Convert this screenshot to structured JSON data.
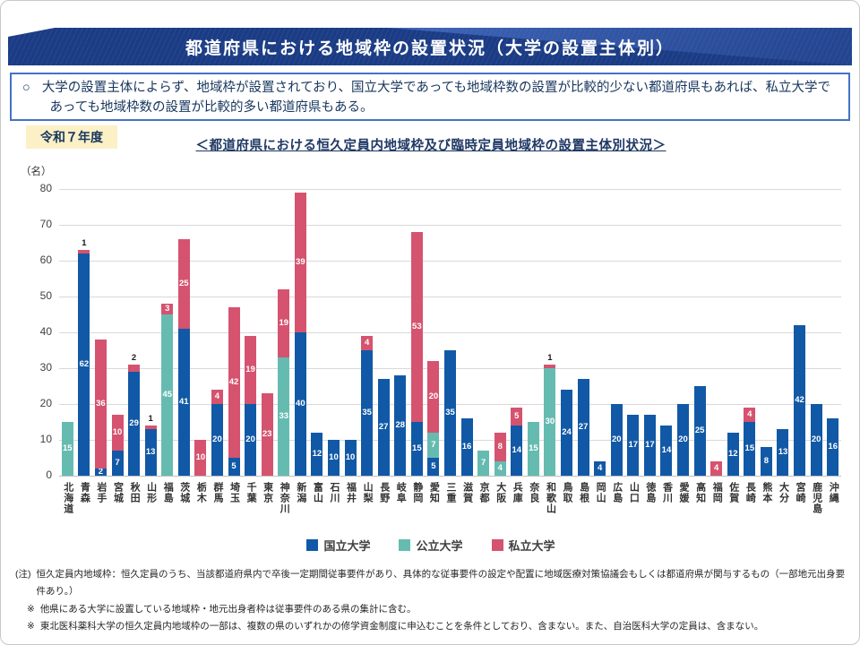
{
  "header": {
    "title": "都道府県における地域枠の設置状況（大学の設置主体別）"
  },
  "note": {
    "bullet": "○",
    "text": "大学の設置主体によらず、地域枠が設置されており、国立大学であっても地域枠数の設置が比較的少ない都道府県もあれば、私立大学であっても地域枠数の設置が比較的多い都道府県もある。"
  },
  "year_badge": "令和７年度",
  "chart_title": "＜都道府県における恒久定員内地域枠及び臨時定員地域枠の設置主体別状況＞",
  "chart_data": {
    "type": "bar",
    "stacked": true,
    "unit_label": "（名）",
    "ylim": [
      0,
      80
    ],
    "ytick_interval": 10,
    "grid": true,
    "legend_position": "bottom",
    "categories": [
      "北海道",
      "青森",
      "岩手",
      "宮城",
      "秋田",
      "山形",
      "福島",
      "茨城",
      "栃木",
      "群馬",
      "埼玉",
      "千葉",
      "東京",
      "神奈川",
      "新潟",
      "富山",
      "石川",
      "福井",
      "山梨",
      "長野",
      "岐阜",
      "静岡",
      "愛知",
      "三重",
      "滋賀",
      "京都",
      "大阪",
      "兵庫",
      "奈良",
      "和歌山",
      "鳥取",
      "島根",
      "岡山",
      "広島",
      "山口",
      "徳島",
      "香川",
      "愛媛",
      "高知",
      "福岡",
      "佐賀",
      "長崎",
      "熊本",
      "大分",
      "宮崎",
      "鹿児島",
      "沖縄"
    ],
    "series": [
      {
        "name": "国立大学",
        "color": "#1159a6",
        "values": [
          0,
          62,
          2,
          7,
          29,
          13,
          0,
          41,
          0,
          20,
          5,
          20,
          0,
          0,
          40,
          12,
          10,
          10,
          35,
          27,
          28,
          15,
          5,
          35,
          16,
          0,
          0,
          14,
          0,
          0,
          24,
          27,
          4,
          20,
          17,
          17,
          14,
          20,
          25,
          0,
          12,
          15,
          8,
          13,
          42,
          20,
          16
        ]
      },
      {
        "name": "公立大学",
        "color": "#66bbb1",
        "values": [
          15,
          0,
          0,
          0,
          0,
          0,
          45,
          0,
          0,
          0,
          0,
          0,
          0,
          33,
          0,
          0,
          0,
          0,
          0,
          0,
          0,
          0,
          7,
          0,
          0,
          7,
          4,
          0,
          15,
          30,
          0,
          0,
          0,
          0,
          0,
          0,
          0,
          0,
          0,
          0,
          0,
          0,
          0,
          0,
          0,
          0,
          0
        ]
      },
      {
        "name": "私立大学",
        "color": "#d5536f",
        "values": [
          0,
          1,
          36,
          10,
          2,
          1,
          3,
          25,
          10,
          4,
          42,
          19,
          23,
          19,
          39,
          0,
          0,
          0,
          4,
          0,
          0,
          53,
          20,
          0,
          0,
          0,
          8,
          5,
          0,
          1,
          0,
          0,
          0,
          0,
          0,
          0,
          0,
          0,
          0,
          4,
          0,
          4,
          0,
          0,
          0,
          0,
          0
        ]
      }
    ],
    "labels_above": [
      {
        "category": "青森",
        "series": "私立大学"
      },
      {
        "category": "秋田",
        "series": "私立大学"
      },
      {
        "category": "山形",
        "series": "私立大学"
      },
      {
        "category": "和歌山",
        "series": "私立大学"
      }
    ]
  },
  "footnotes": [
    {
      "marker": "(注)",
      "text": "恒久定員内地域枠：恒久定員のうち、当該都道府県内で卒後一定期間従事要件があり、具体的な従事要件の設定や配置に地域医療対策協議会もしくは都道府県が関与するもの（一部地元出身要件あり。）"
    },
    {
      "marker": "※",
      "text": "他県にある大学に設置している地域枠・地元出身者枠は従事要件のある県の集計に含む。"
    },
    {
      "marker": "※",
      "text": "東北医科薬科大学の恒久定員内地域枠の一部は、複数の県のいずれかの修学資金制度に申込むことを条件としており、含まない。また、自治医科大学の定員は、含まない。"
    }
  ]
}
